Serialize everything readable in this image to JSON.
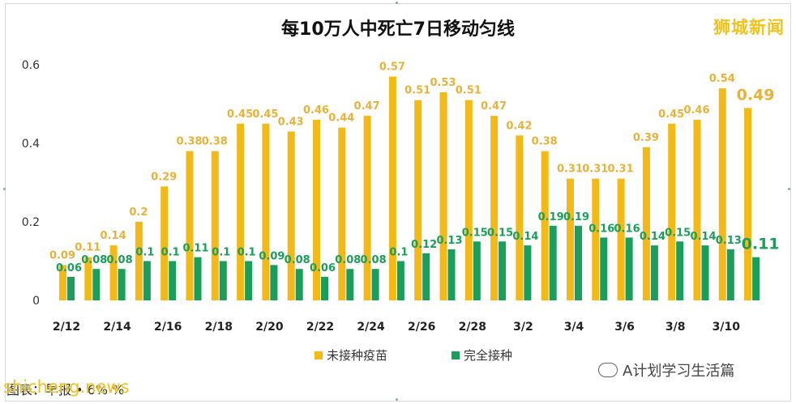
{
  "header": {
    "title": "每10万人中死亡7日移动匀线",
    "brand": "狮城新闻"
  },
  "footer": {
    "source": "图表：早报 • 6% %",
    "site": "shicheng.news",
    "wechat": "A计划学习生活篇"
  },
  "colors": {
    "unvaccinated": "#f3b917",
    "vaccinated": "#1a9e5a",
    "unvaccinated_label": "#e8b23a",
    "vaccinated_label": "#1a9e5a",
    "grid": "#e5e5e5"
  },
  "chart_data": {
    "type": "bar",
    "title": "每10万人中死亡7日移动匀线",
    "categories": [
      "2/12",
      "2/13",
      "2/14",
      "2/15",
      "2/16",
      "2/17",
      "2/18",
      "2/19",
      "2/20",
      "2/21",
      "2/22",
      "2/23",
      "2/24",
      "2/25",
      "2/26",
      "2/27",
      "2/28",
      "3/1",
      "3/2",
      "3/3",
      "3/4",
      "3/5",
      "3/6",
      "3/7",
      "3/8",
      "3/9",
      "3/10",
      "3/11"
    ],
    "xtick_labels": [
      "2/12",
      "2/14",
      "2/16",
      "2/18",
      "2/20",
      "2/22",
      "2/24",
      "2/26",
      "2/28",
      "3/2",
      "3/4",
      "3/6",
      "3/8",
      "3/10"
    ],
    "ylim": [
      0,
      0.6
    ],
    "yticks": [
      0,
      0.2,
      0.4,
      0.6
    ],
    "ytick_labels": [
      "0",
      "0.2",
      "0.4",
      "0.6"
    ],
    "grid": false,
    "legend_position": "bottom",
    "series": [
      {
        "name": "未接种疫苗",
        "values": [
          0.09,
          0.11,
          0.14,
          0.2,
          0.29,
          0.38,
          0.38,
          0.45,
          0.45,
          0.43,
          0.46,
          0.44,
          0.47,
          0.57,
          0.51,
          0.53,
          0.51,
          0.47,
          0.42,
          0.38,
          0.31,
          0.31,
          0.31,
          0.39,
          0.45,
          0.46,
          0.54,
          0.49
        ],
        "labels": [
          "0.09",
          "0.11",
          "0.14",
          "0.2",
          "0.29",
          "0.38",
          "0.38",
          "0.45",
          "0.45",
          "0.43",
          "0.46",
          "0.44",
          "0.47",
          "0.57",
          "0.51",
          "0.53",
          "0.51",
          "0.47",
          "0.42",
          "0.38",
          "0.31",
          "0.31",
          "0.31",
          "0.39",
          "0.45",
          "0.46",
          "0.54",
          "0.49"
        ]
      },
      {
        "name": "完全接种",
        "values": [
          0.06,
          0.08,
          0.08,
          0.1,
          0.1,
          0.11,
          0.1,
          0.1,
          0.09,
          0.08,
          0.06,
          0.08,
          0.08,
          0.1,
          0.12,
          0.13,
          0.15,
          0.15,
          0.14,
          0.19,
          0.19,
          0.16,
          0.16,
          0.14,
          0.15,
          0.14,
          0.13,
          0.11
        ],
        "labels": [
          "0.06",
          "0.08",
          "0.08",
          "0.1",
          "0.1",
          "0.11",
          "0.1",
          "0.1",
          "0.09",
          "0.08",
          "0.06",
          "0.08",
          "0.08",
          "0.1",
          "0.12",
          "0.13",
          "0.15",
          "0.15",
          "0.14",
          "0.19",
          "0.19",
          "0.16",
          "0.16",
          "0.14",
          "0.15",
          "0.14",
          "0.13",
          "0.11"
        ]
      }
    ]
  }
}
